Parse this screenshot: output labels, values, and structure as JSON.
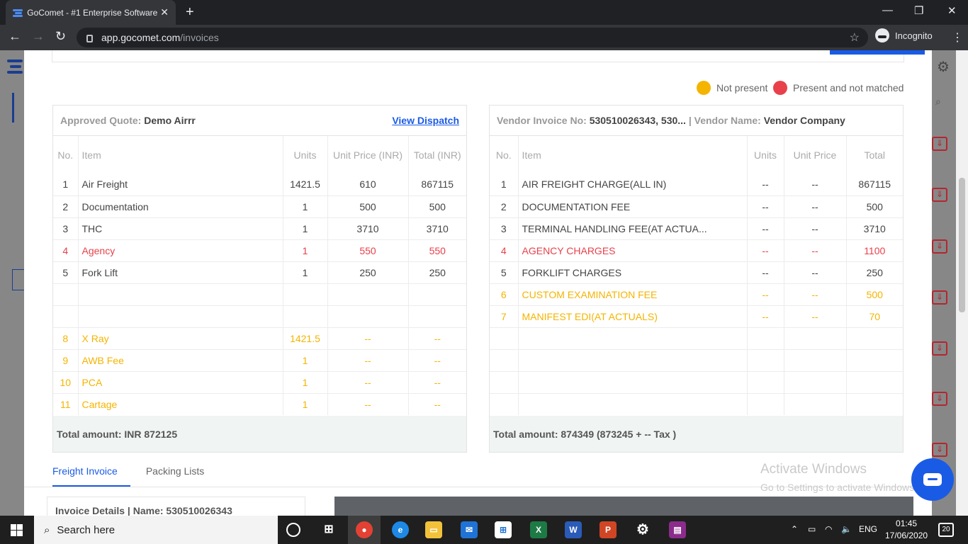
{
  "browser": {
    "tab_title": "GoComet - #1 Enterprise Software",
    "tab_close": "✕",
    "new_tab": "+",
    "url_host": "app.gocomet.com",
    "url_path": "/invoices",
    "incognito_label": "Incognito",
    "minimize": "—",
    "maximize": "❐",
    "close": "✕"
  },
  "legend": {
    "not_present": "Not present",
    "not_present_color": "#f5b400",
    "mismatch": "Present and not matched",
    "mismatch_color": "#e8414b"
  },
  "quote": {
    "label": "Approved Quote:",
    "name": "Demo Airrr",
    "view_dispatch": "View Dispatch",
    "columns": [
      "No.",
      "Item",
      "Units",
      "Unit Price (INR)",
      "Total (INR)"
    ],
    "rows": [
      {
        "no": "1",
        "item": "Air Freight",
        "units": "1421.5",
        "price": "610",
        "total": "867115",
        "status": "ok"
      },
      {
        "no": "2",
        "item": "Documentation",
        "units": "1",
        "price": "500",
        "total": "500",
        "status": "ok"
      },
      {
        "no": "3",
        "item": "THC",
        "units": "1",
        "price": "3710",
        "total": "3710",
        "status": "ok"
      },
      {
        "no": "4",
        "item": "Agency",
        "units": "1",
        "price": "550",
        "total": "550",
        "status": "mismatch"
      },
      {
        "no": "5",
        "item": "Fork Lift",
        "units": "1",
        "price": "250",
        "total": "250",
        "status": "ok"
      },
      {
        "no": "",
        "item": "",
        "units": "",
        "price": "",
        "total": "",
        "status": "ok"
      },
      {
        "no": "",
        "item": "",
        "units": "",
        "price": "",
        "total": "",
        "status": "ok"
      },
      {
        "no": "8",
        "item": "X Ray",
        "units": "1421.5",
        "price": "--",
        "total": "--",
        "status": "missing"
      },
      {
        "no": "9",
        "item": "AWB Fee",
        "units": "1",
        "price": "--",
        "total": "--",
        "status": "missing"
      },
      {
        "no": "10",
        "item": "PCA",
        "units": "1",
        "price": "--",
        "total": "--",
        "status": "missing"
      },
      {
        "no": "11",
        "item": "Cartage",
        "units": "1",
        "price": "--",
        "total": "--",
        "status": "missing"
      }
    ],
    "total": "Total amount: INR 872125"
  },
  "vendor": {
    "invoice_label": "Vendor Invoice No:",
    "invoice_no": "530510026343, 530...",
    "sep": " | ",
    "name_label": "Vendor Name:",
    "name": "Vendor Company",
    "columns": [
      "No.",
      "Item",
      "Units",
      "Unit Price",
      "Total"
    ],
    "rows": [
      {
        "no": "1",
        "item": "AIR FREIGHT CHARGE(ALL IN)",
        "units": "--",
        "price": "--",
        "total": "867115",
        "status": "ok"
      },
      {
        "no": "2",
        "item": "DOCUMENTATION FEE",
        "units": "--",
        "price": "--",
        "total": "500",
        "status": "ok"
      },
      {
        "no": "3",
        "item": "TERMINAL HANDLING FEE(AT ACTUA...",
        "units": "--",
        "price": "--",
        "total": "3710",
        "status": "ok"
      },
      {
        "no": "4",
        "item": "AGENCY CHARGES",
        "units": "--",
        "price": "--",
        "total": "1100",
        "status": "mismatch"
      },
      {
        "no": "5",
        "item": "FORKLIFT CHARGES",
        "units": "--",
        "price": "--",
        "total": "250",
        "status": "ok"
      },
      {
        "no": "6",
        "item": "CUSTOM EXAMINATION FEE",
        "units": "--",
        "price": "--",
        "total": "500",
        "status": "missing"
      },
      {
        "no": "7",
        "item": "MANIFEST EDI(AT ACTUALS)",
        "units": "--",
        "price": "--",
        "total": "70",
        "status": "missing"
      },
      {
        "no": "",
        "item": "",
        "units": "",
        "price": "",
        "total": "",
        "status": "ok"
      },
      {
        "no": "",
        "item": "",
        "units": "",
        "price": "",
        "total": "",
        "status": "ok"
      },
      {
        "no": "",
        "item": "",
        "units": "",
        "price": "",
        "total": "",
        "status": "ok"
      },
      {
        "no": "",
        "item": "",
        "units": "",
        "price": "",
        "total": "",
        "status": "ok"
      }
    ],
    "total": "Total amount: 874349 (873245 + -- Tax )"
  },
  "tabs": [
    "Freight Invoice",
    "Packing Lists"
  ],
  "invoice_details": "Invoice Details | Name: 530510026343",
  "watermark": {
    "line1": "Activate Windows",
    "line2": "Go to Settings to activate Windows."
  },
  "taskbar": {
    "search_placeholder": "Search here",
    "lang": "ENG",
    "time": "01:45",
    "date": "17/06/2020",
    "notifications": "20"
  }
}
